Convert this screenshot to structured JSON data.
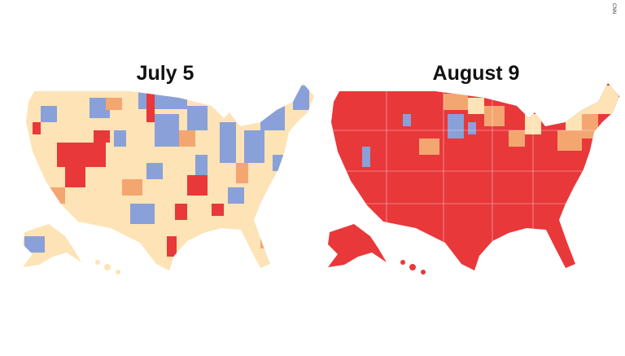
{
  "titles": {
    "left": "July 5",
    "right": "August 9"
  },
  "credit": "CNN"
}
